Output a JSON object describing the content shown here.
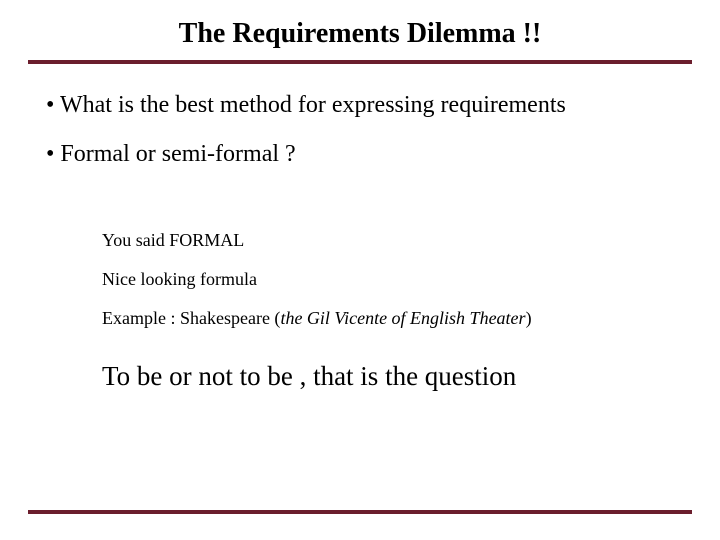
{
  "colors": {
    "rule": "#6b1e2d",
    "text": "#000000",
    "background": "#ffffff"
  },
  "title": "The Requirements Dilemma !!",
  "bullets": [
    "• What is the best method for expressing requirements",
    "• Formal or semi-formal ?"
  ],
  "sub_lines": {
    "line1": "You said FORMAL",
    "line2": "Nice looking formula",
    "line3_prefix": "Example : Shakespeare (",
    "line3_italic": "the Gil Vicente of English Theater",
    "line3_suffix": ")"
  },
  "big_quote": "To be or not to be , that is the question"
}
